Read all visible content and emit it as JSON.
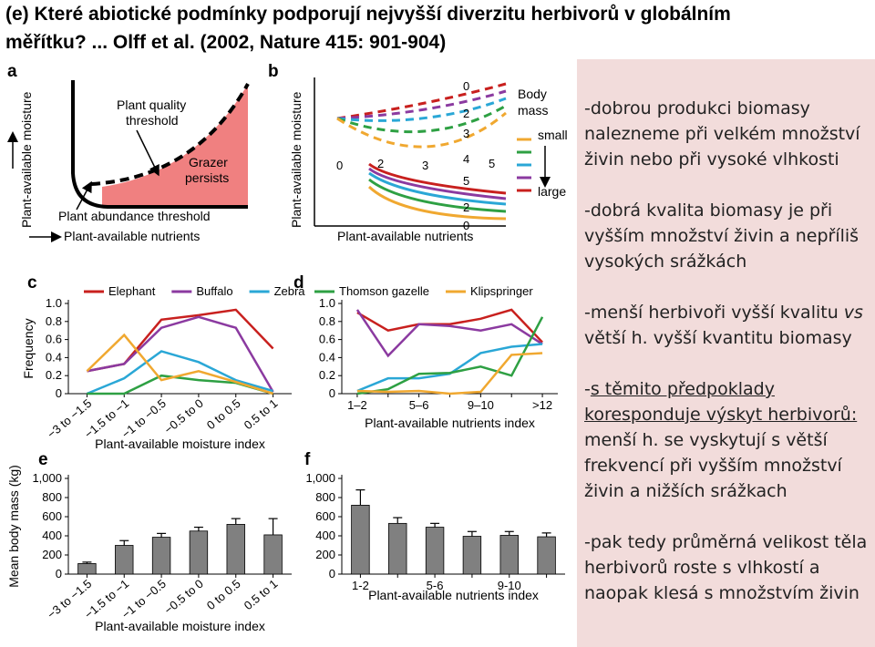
{
  "header": {
    "title_lines": [
      "(e) Které abiotické podmínky podporují nejvyšší diverzitu herbivorů v globálním",
      "měřítku? ... Olff et al. (2002, Nature  415: 901-904)"
    ]
  },
  "diagrams": {
    "a": {
      "panel": "a",
      "plant_quality_threshold": [
        "Plant quality",
        "threshold"
      ],
      "grazer_persists": [
        "Grazer",
        "persists"
      ],
      "plant_abundance_threshold": "Plant abundance threshold",
      "ylabel": "Plant-available moisture",
      "xlabel": "Plant-available nutrients"
    },
    "b": {
      "panel": "b",
      "ylabel": "Plant-available moisture",
      "xlabel": "Plant-available nutrients",
      "column_labels": [
        0,
        2,
        3,
        4,
        5,
        2,
        0
      ],
      "row_labels": [
        0,
        2,
        3,
        5
      ],
      "legend_title": [
        "Body",
        "mass"
      ],
      "small": "small",
      "large": "large"
    }
  },
  "chart_data": [
    {
      "type": "line",
      "panel": "c",
      "ylabel": "Frequency",
      "xlabel": "Plant-available moisture index",
      "rotate_labels": true,
      "categories": [
        "−3 to −1.5",
        "−1.5 to −1",
        "−1 to −0.5",
        "−0.5 to 0",
        "0 to 0.5",
        "0.5 to 1"
      ],
      "ylim": [
        0,
        1
      ],
      "yticks": [
        0,
        0.2,
        0.4,
        0.6,
        0.8,
        {
          "value": 1,
          "label": "1.0"
        }
      ],
      "series": [
        {
          "name": "Elephant",
          "color": "#c8201e",
          "values": [
            0.25,
            0.33,
            0.82,
            0.87,
            0.93,
            0.5
          ]
        },
        {
          "name": "Buffalo",
          "color": "#8b3aa0",
          "values": [
            0.25,
            0.33,
            0.73,
            0.85,
            0.73,
            0.02
          ]
        },
        {
          "name": "Zebra",
          "color": "#2aa7d6",
          "values": [
            0,
            0.17,
            0.47,
            0.35,
            0.15,
            0.03
          ]
        },
        {
          "color": "#2ea043",
          "values": [
            0,
            0,
            0.2,
            0.15,
            0.12,
            0
          ]
        },
        {
          "color": "#f0a830",
          "values": [
            0.25,
            0.65,
            0.15,
            0.25,
            0.13,
            0
          ]
        }
      ]
    },
    {
      "type": "line",
      "panel": "d",
      "xlabel": "Plant-available nutrients index",
      "rotate_labels": false,
      "categories": [
        "1–2",
        null,
        "5–6",
        null,
        "9–10",
        null,
        ">12"
      ],
      "ylim": [
        0,
        1
      ],
      "yticks": [
        0,
        0.2,
        0.4,
        0.6,
        0.8,
        {
          "value": 1,
          "label": "1.0"
        }
      ],
      "series": [
        {
          "color": "#c8201e",
          "values": [
            0.9,
            0.7,
            0.77,
            0.77,
            0.83,
            0.93,
            0.57
          ]
        },
        {
          "color": "#8b3aa0",
          "values": [
            0.93,
            0.42,
            0.77,
            0.75,
            0.7,
            0.77,
            0.55
          ]
        },
        {
          "color": "#2aa7d6",
          "values": [
            0.03,
            0.17,
            0.17,
            0.22,
            0.45,
            0.52,
            0.55
          ]
        },
        {
          "name": "Thomson gazelle",
          "color": "#2ea043",
          "values": [
            0,
            0.05,
            0.22,
            0.23,
            0.3,
            0.2,
            0.85
          ]
        },
        {
          "name": "Klipspringer",
          "color": "#f0a830",
          "values": [
            0.03,
            0.02,
            0.03,
            0,
            0.02,
            0.43,
            0.45
          ]
        }
      ]
    },
    {
      "type": "bar",
      "panel": "e",
      "ylabel": "Mean body mass (kg)",
      "xlabel": "Plant-available moisture index",
      "rotate_labels": true,
      "color": "#808080",
      "categories": [
        "−3 to −1.5",
        "−1.5 to −1",
        "−1 to −0.5",
        "−0.5 to 0",
        "0 to 0.5",
        "0.5 to 1"
      ],
      "ylim": [
        0,
        1000
      ],
      "yticks": [
        0,
        200,
        400,
        600,
        800,
        {
          "value": 1000,
          "label": "1,000"
        }
      ],
      "values": [
        110,
        300,
        385,
        450,
        520,
        410
      ],
      "errors": [
        15,
        50,
        40,
        40,
        60,
        170
      ]
    },
    {
      "type": "bar",
      "panel": "f",
      "xlabel": "Plant-available nutrients index",
      "rotate_labels": false,
      "color": "#808080",
      "categories": [
        "1-2",
        null,
        "5-6",
        null,
        "9-10",
        null
      ],
      "ylim": [
        0,
        1000
      ],
      "yticks": [
        0,
        200,
        400,
        600,
        800,
        {
          "value": 1000,
          "label": "1,000"
        }
      ],
      "values": [
        720,
        530,
        490,
        395,
        405,
        390
      ],
      "errors": [
        160,
        60,
        40,
        50,
        40,
        40
      ]
    }
  ],
  "notes": {
    "p1": "-dobrou produkci biomasy nalezneme při velkém množství živin nebo při vysoké vlhkosti",
    "p2": "-dobrá kvalita biomasy je při vyšším množství živin a nepříliš vysokých srážkách",
    "p3": [
      "-menší herbivoři vyšší kvalitu ",
      "vs",
      " větší h. vyšší kvantitu biomasy"
    ],
    "p4": [
      "-",
      "s těmito předpoklady koresponduje výskyt herbivorů:",
      " menší h. se vyskytují s větší frekvencí při vyšším množství živin a nižších srážkach"
    ],
    "p5": "-pak tedy průměrná velikost těla herbivorů roste s vlhkostí a naopak klesá s množstvím živin"
  }
}
